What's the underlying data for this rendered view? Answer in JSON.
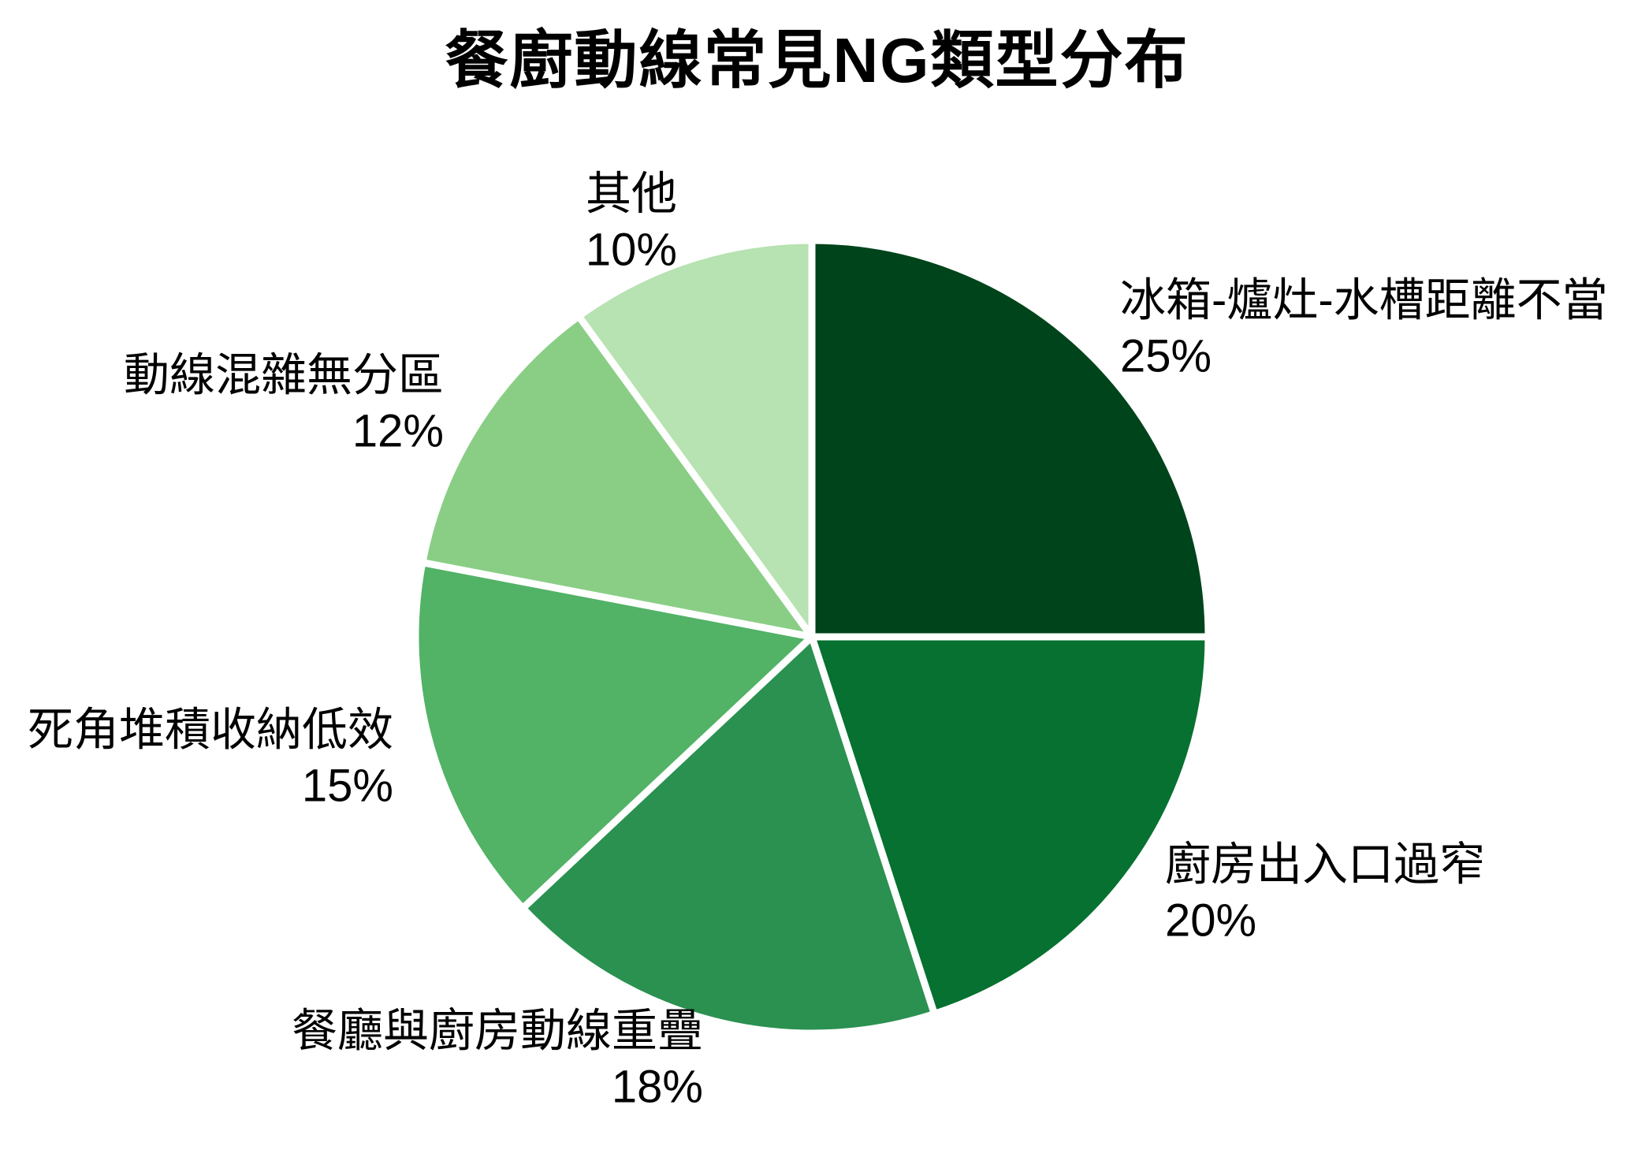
{
  "title": "餐廚動線常見NG類型分布",
  "colors": {
    "background": "#ffffff",
    "text": "#000000",
    "slice_border": "#ffffff"
  },
  "chart_data": {
    "type": "pie",
    "title": "餐廚動線常見NG類型分布",
    "start_angle": "12-o-clock",
    "direction": "clockwise",
    "legend_position": "none",
    "labels_position": "outside",
    "slice_border_color": "#ffffff",
    "slices": [
      {
        "label": "冰箱-爐灶-水槽距離不當",
        "value": 25,
        "pct_text": "25%",
        "color": "#00441b"
      },
      {
        "label": "廚房出入口過窄",
        "value": 20,
        "pct_text": "20%",
        "color": "#067130"
      },
      {
        "label": "餐廳與廚房動線重疊",
        "value": 18,
        "pct_text": "18%",
        "color": "#2a9150"
      },
      {
        "label": "死角堆積收納低效",
        "value": 15,
        "pct_text": "15%",
        "color": "#52b266"
      },
      {
        "label": "動線混雜無分區",
        "value": 12,
        "pct_text": "12%",
        "color": "#8ace86"
      },
      {
        "label": "其他",
        "value": 10,
        "pct_text": "10%",
        "color": "#b7e2b1"
      }
    ]
  }
}
